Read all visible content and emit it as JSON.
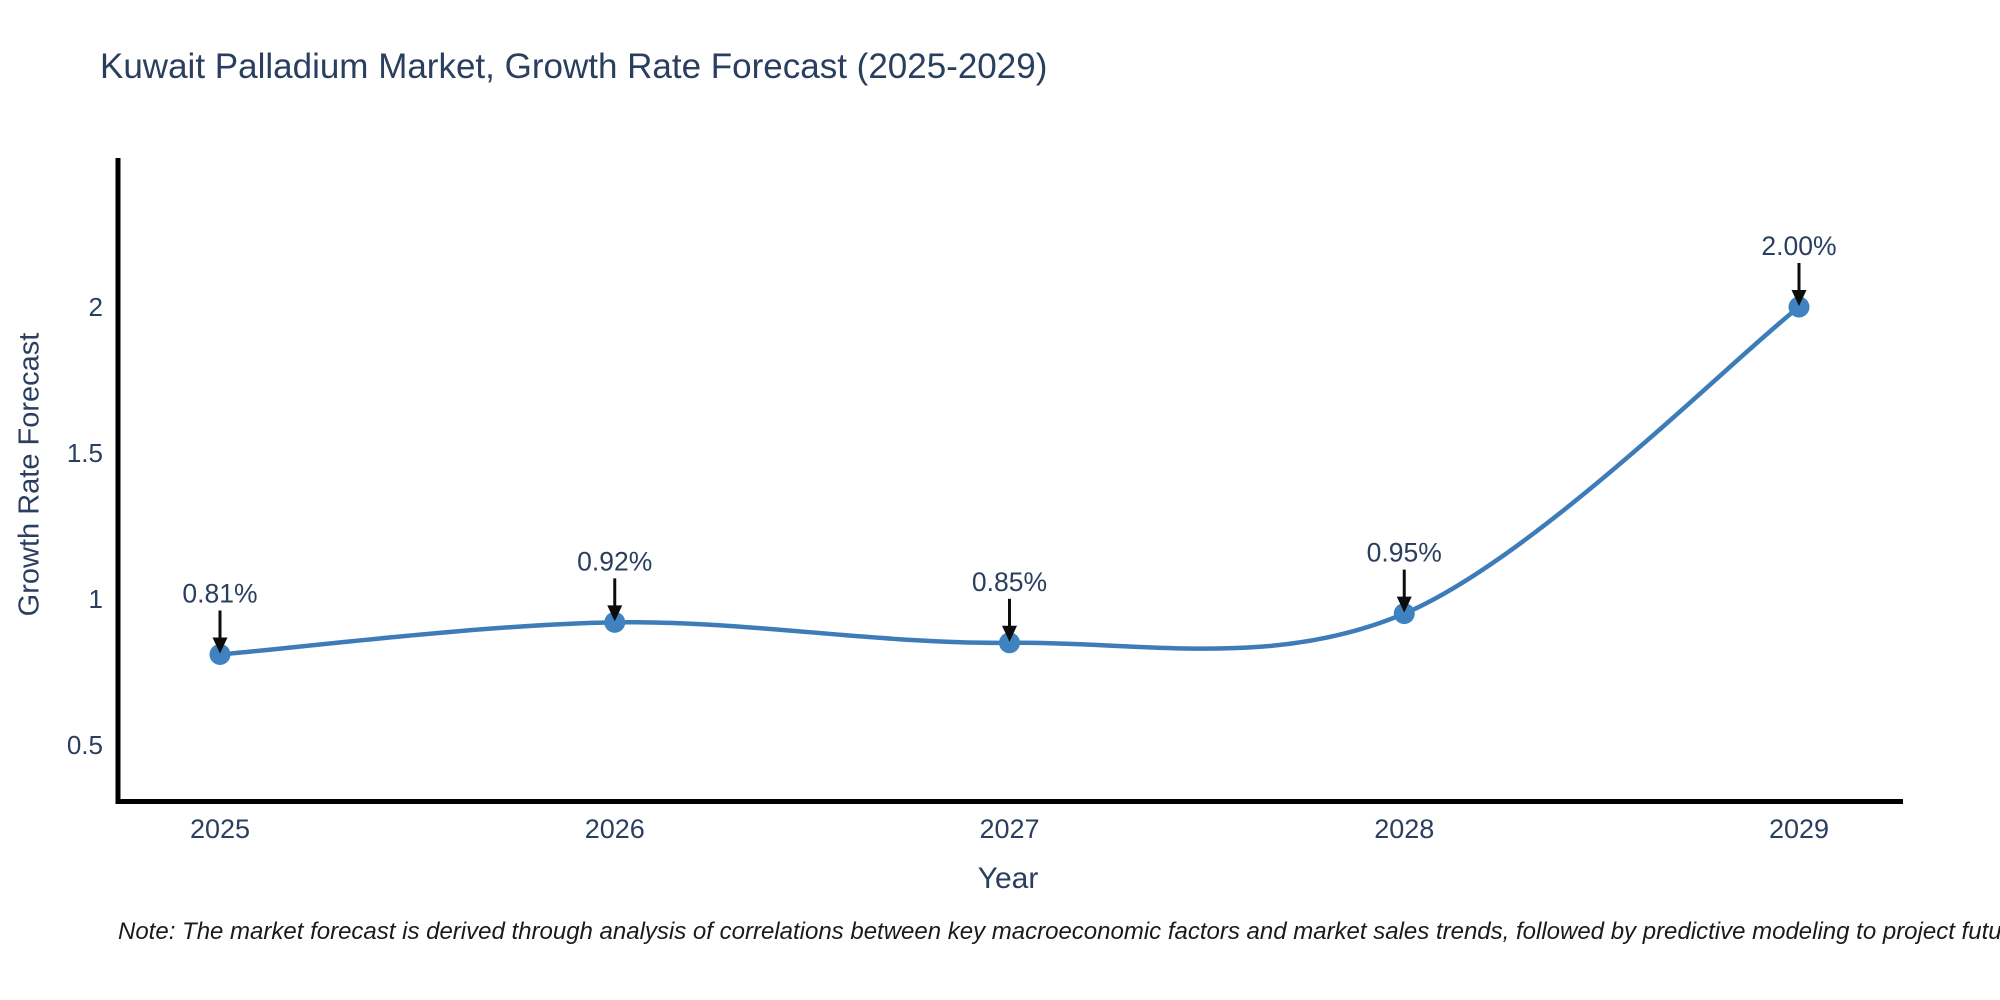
{
  "title": "Kuwait Palladium Market, Growth Rate Forecast (2025-2029)",
  "note": "Note: The market forecast is derived through analysis of correlations between key macroeconomic factors and market sales trends, followed by predictive modeling to project future sales",
  "chart_data": {
    "type": "line",
    "title": "Kuwait Palladium Market, Growth Rate Forecast (2025-2029)",
    "xlabel": "Year",
    "ylabel": "Growth Rate Forecast",
    "categories": [
      "2025",
      "2026",
      "2027",
      "2028",
      "2029"
    ],
    "series": [
      {
        "name": "Growth Rate Forecast",
        "values": [
          0.81,
          0.92,
          0.85,
          0.95,
          2.0
        ],
        "data_labels": [
          "0.81%",
          "0.92%",
          "0.85%",
          "0.95%",
          "2.00%"
        ]
      }
    ],
    "line_shape": "spline",
    "markers": true,
    "annotations_arrows": true,
    "ylim": [
      0.31,
      2.51
    ],
    "ytick_values": [
      0.5,
      1,
      1.5,
      2
    ],
    "ytick_labels": [
      "0.5",
      "1",
      "1.5",
      "2"
    ],
    "grid": false,
    "legend_position": "none",
    "colors": {
      "line": "#3d7cb8",
      "marker": "#3f82bf",
      "axis_line": "#000000",
      "text": "#2a3f5f",
      "annotation_arrow": "#0d0d0d",
      "background": "#ffffff"
    }
  }
}
